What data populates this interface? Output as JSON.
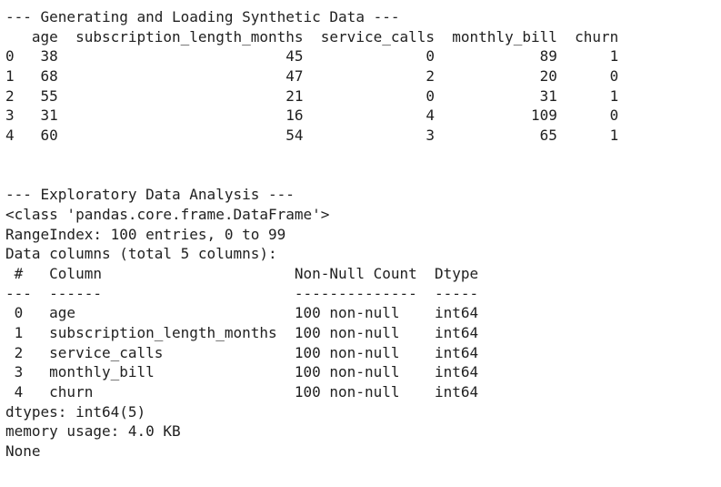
{
  "output_lines": [
    "--- Generating and Loading Synthetic Data ---",
    "   age  subscription_length_months  service_calls  monthly_bill  churn",
    "0   38                          45              0            89      1",
    "1   68                          47              2            20      0",
    "2   55                          21              0            31      1",
    "3   31                          16              4           109      0",
    "4   60                          54              3            65      1",
    "",
    "",
    "--- Exploratory Data Analysis ---",
    "<class 'pandas.core.frame.DataFrame'>",
    "RangeIndex: 100 entries, 0 to 99",
    "Data columns (total 5 columns):",
    " #   Column                      Non-Null Count  Dtype",
    "---  ------                      --------------  -----",
    " 0   age                         100 non-null    int64",
    " 1   subscription_length_months  100 non-null    int64",
    " 2   service_calls               100 non-null    int64",
    " 3   monthly_bill                100 non-null    int64",
    " 4   churn                       100 non-null    int64",
    "dtypes: int64(5)",
    "memory usage: 4.0 KB",
    "None"
  ]
}
